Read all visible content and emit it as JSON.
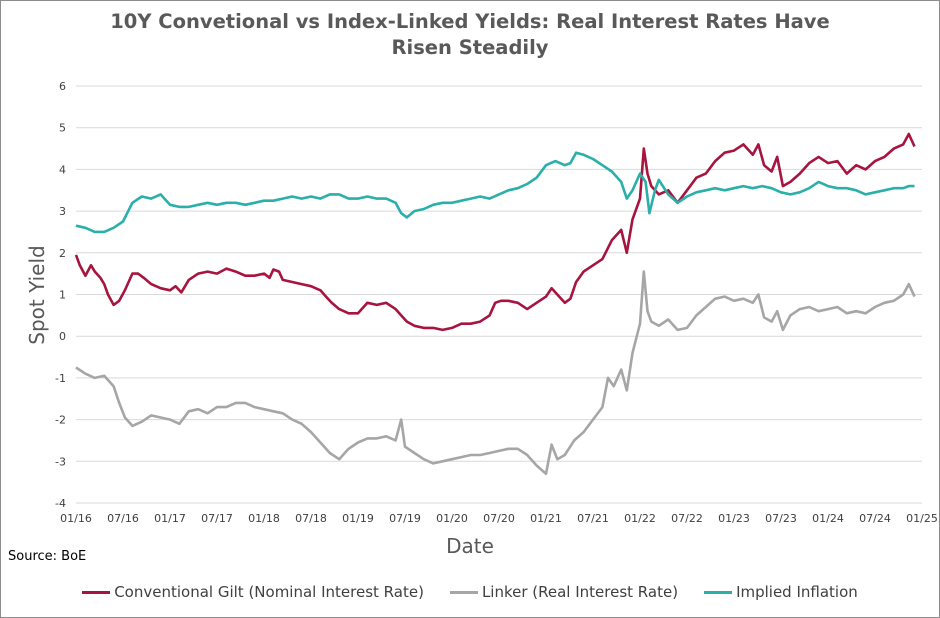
{
  "chart_data": {
    "type": "line",
    "title": [
      "10Y Convetional vs Index-Linked Yields: Real Interest Rates Have",
      "Risen Steadily"
    ],
    "xlabel": "Date",
    "ylabel": "Spot Yield",
    "source": "Source: BoE",
    "ylim": [
      -4,
      6
    ],
    "yticks": [
      "6",
      "5",
      "4",
      "3",
      "2",
      "1",
      "0",
      "-1",
      "-2",
      "-3",
      "-4"
    ],
    "xticks": [
      "01/16",
      "07/16",
      "01/17",
      "07/17",
      "01/18",
      "07/18",
      "01/19",
      "07/19",
      "01/20",
      "07/20",
      "01/21",
      "07/21",
      "01/22",
      "07/22",
      "01/23",
      "07/23",
      "01/24",
      "07/24",
      "01/25"
    ],
    "grid": "horizontal",
    "legend_position": "bottom",
    "series": [
      {
        "name": "Conventional Gilt (Nominal Interest Rate)",
        "color": "#A6143F",
        "points": [
          [
            0.0,
            1.95
          ],
          [
            0.2,
            1.7
          ],
          [
            0.5,
            1.45
          ],
          [
            0.8,
            1.7
          ],
          [
            1.0,
            1.55
          ],
          [
            1.3,
            1.4
          ],
          [
            1.5,
            1.25
          ],
          [
            1.7,
            1.0
          ],
          [
            2.0,
            0.75
          ],
          [
            2.3,
            0.85
          ],
          [
            2.6,
            1.1
          ],
          [
            2.8,
            1.3
          ],
          [
            3.0,
            1.5
          ],
          [
            3.3,
            1.5
          ],
          [
            3.6,
            1.4
          ],
          [
            4.0,
            1.25
          ],
          [
            4.5,
            1.15
          ],
          [
            5.0,
            1.1
          ],
          [
            5.3,
            1.2
          ],
          [
            5.6,
            1.05
          ],
          [
            6.0,
            1.35
          ],
          [
            6.5,
            1.5
          ],
          [
            7.0,
            1.55
          ],
          [
            7.5,
            1.5
          ],
          [
            8.0,
            1.62
          ],
          [
            8.5,
            1.55
          ],
          [
            9.0,
            1.45
          ],
          [
            9.5,
            1.45
          ],
          [
            10.0,
            1.5
          ],
          [
            10.3,
            1.4
          ],
          [
            10.5,
            1.6
          ],
          [
            10.8,
            1.55
          ],
          [
            11.0,
            1.35
          ],
          [
            11.5,
            1.3
          ],
          [
            12.0,
            1.25
          ],
          [
            12.5,
            1.2
          ],
          [
            13.0,
            1.1
          ],
          [
            13.3,
            0.95
          ],
          [
            13.6,
            0.8
          ],
          [
            14.0,
            0.65
          ],
          [
            14.5,
            0.55
          ],
          [
            15.0,
            0.55
          ],
          [
            15.5,
            0.8
          ],
          [
            16.0,
            0.75
          ],
          [
            16.5,
            0.8
          ],
          [
            17.0,
            0.65
          ],
          [
            17.3,
            0.5
          ],
          [
            17.6,
            0.35
          ],
          [
            18.0,
            0.25
          ],
          [
            18.5,
            0.2
          ],
          [
            19.0,
            0.2
          ],
          [
            19.5,
            0.15
          ],
          [
            20.0,
            0.2
          ],
          [
            20.5,
            0.3
          ],
          [
            21.0,
            0.3
          ],
          [
            21.5,
            0.35
          ],
          [
            22.0,
            0.5
          ],
          [
            22.3,
            0.8
          ],
          [
            22.6,
            0.85
          ],
          [
            23.0,
            0.85
          ],
          [
            23.5,
            0.8
          ],
          [
            24.0,
            0.65
          ],
          [
            24.5,
            0.8
          ],
          [
            25.0,
            0.95
          ],
          [
            25.3,
            1.15
          ],
          [
            25.6,
            1.0
          ],
          [
            26.0,
            0.8
          ],
          [
            26.3,
            0.9
          ],
          [
            26.6,
            1.3
          ],
          [
            27.0,
            1.55
          ],
          [
            27.5,
            1.7
          ],
          [
            28.0,
            1.85
          ],
          [
            28.5,
            2.3
          ],
          [
            29.0,
            2.55
          ],
          [
            29.3,
            2.0
          ],
          [
            29.6,
            2.8
          ],
          [
            30.0,
            3.3
          ],
          [
            30.2,
            4.5
          ],
          [
            30.4,
            3.9
          ],
          [
            30.6,
            3.6
          ],
          [
            31.0,
            3.4
          ],
          [
            31.5,
            3.5
          ],
          [
            32.0,
            3.2
          ],
          [
            32.5,
            3.5
          ],
          [
            33.0,
            3.8
          ],
          [
            33.5,
            3.9
          ],
          [
            34.0,
            4.2
          ],
          [
            34.5,
            4.4
          ],
          [
            35.0,
            4.45
          ],
          [
            35.5,
            4.6
          ],
          [
            36.0,
            4.35
          ],
          [
            36.3,
            4.6
          ],
          [
            36.6,
            4.1
          ],
          [
            37.0,
            3.95
          ],
          [
            37.3,
            4.3
          ],
          [
            37.6,
            3.6
          ],
          [
            38.0,
            3.7
          ],
          [
            38.5,
            3.9
          ],
          [
            39.0,
            4.15
          ],
          [
            39.5,
            4.3
          ],
          [
            40.0,
            4.15
          ],
          [
            40.5,
            4.2
          ],
          [
            41.0,
            3.9
          ],
          [
            41.5,
            4.1
          ],
          [
            42.0,
            4.0
          ],
          [
            42.5,
            4.2
          ],
          [
            43.0,
            4.3
          ],
          [
            43.5,
            4.5
          ],
          [
            44.0,
            4.6
          ],
          [
            44.3,
            4.85
          ],
          [
            44.6,
            4.55
          ]
        ]
      },
      {
        "name": "Linker (Real Interest Rate)",
        "color": "#A6A6A6",
        "points": [
          [
            0.0,
            -0.75
          ],
          [
            0.5,
            -0.9
          ],
          [
            1.0,
            -1.0
          ],
          [
            1.5,
            -0.95
          ],
          [
            2.0,
            -1.2
          ],
          [
            2.3,
            -1.6
          ],
          [
            2.6,
            -1.95
          ],
          [
            3.0,
            -2.15
          ],
          [
            3.5,
            -2.05
          ],
          [
            4.0,
            -1.9
          ],
          [
            4.5,
            -1.95
          ],
          [
            5.0,
            -2.0
          ],
          [
            5.5,
            -2.1
          ],
          [
            6.0,
            -1.8
          ],
          [
            6.5,
            -1.75
          ],
          [
            7.0,
            -1.85
          ],
          [
            7.5,
            -1.7
          ],
          [
            8.0,
            -1.7
          ],
          [
            8.5,
            -1.6
          ],
          [
            9.0,
            -1.6
          ],
          [
            9.5,
            -1.7
          ],
          [
            10.0,
            -1.75
          ],
          [
            10.5,
            -1.8
          ],
          [
            11.0,
            -1.85
          ],
          [
            11.5,
            -2.0
          ],
          [
            12.0,
            -2.1
          ],
          [
            12.5,
            -2.3
          ],
          [
            13.0,
            -2.55
          ],
          [
            13.5,
            -2.8
          ],
          [
            14.0,
            -2.95
          ],
          [
            14.5,
            -2.7
          ],
          [
            15.0,
            -2.55
          ],
          [
            15.5,
            -2.45
          ],
          [
            16.0,
            -2.45
          ],
          [
            16.5,
            -2.4
          ],
          [
            17.0,
            -2.5
          ],
          [
            17.3,
            -2.0
          ],
          [
            17.5,
            -2.65
          ],
          [
            18.0,
            -2.8
          ],
          [
            18.5,
            -2.95
          ],
          [
            19.0,
            -3.05
          ],
          [
            19.5,
            -3.0
          ],
          [
            20.0,
            -2.95
          ],
          [
            20.5,
            -2.9
          ],
          [
            21.0,
            -2.85
          ],
          [
            21.5,
            -2.85
          ],
          [
            22.0,
            -2.8
          ],
          [
            22.5,
            -2.75
          ],
          [
            23.0,
            -2.7
          ],
          [
            23.5,
            -2.7
          ],
          [
            24.0,
            -2.85
          ],
          [
            24.5,
            -3.1
          ],
          [
            25.0,
            -3.3
          ],
          [
            25.3,
            -2.6
          ],
          [
            25.6,
            -2.95
          ],
          [
            26.0,
            -2.85
          ],
          [
            26.5,
            -2.5
          ],
          [
            27.0,
            -2.3
          ],
          [
            27.5,
            -2.0
          ],
          [
            28.0,
            -1.7
          ],
          [
            28.3,
            -1.0
          ],
          [
            28.6,
            -1.2
          ],
          [
            29.0,
            -0.8
          ],
          [
            29.3,
            -1.3
          ],
          [
            29.6,
            -0.4
          ],
          [
            30.0,
            0.3
          ],
          [
            30.2,
            1.55
          ],
          [
            30.4,
            0.6
          ],
          [
            30.6,
            0.35
          ],
          [
            31.0,
            0.25
          ],
          [
            31.5,
            0.4
          ],
          [
            32.0,
            0.15
          ],
          [
            32.5,
            0.2
          ],
          [
            33.0,
            0.5
          ],
          [
            33.5,
            0.7
          ],
          [
            34.0,
            0.9
          ],
          [
            34.5,
            0.95
          ],
          [
            35.0,
            0.85
          ],
          [
            35.5,
            0.9
          ],
          [
            36.0,
            0.8
          ],
          [
            36.3,
            1.0
          ],
          [
            36.6,
            0.45
          ],
          [
            37.0,
            0.35
          ],
          [
            37.3,
            0.6
          ],
          [
            37.6,
            0.15
          ],
          [
            38.0,
            0.5
          ],
          [
            38.5,
            0.65
          ],
          [
            39.0,
            0.7
          ],
          [
            39.5,
            0.6
          ],
          [
            40.0,
            0.65
          ],
          [
            40.5,
            0.7
          ],
          [
            41.0,
            0.55
          ],
          [
            41.5,
            0.6
          ],
          [
            42.0,
            0.55
          ],
          [
            42.5,
            0.7
          ],
          [
            43.0,
            0.8
          ],
          [
            43.5,
            0.85
          ],
          [
            44.0,
            1.0
          ],
          [
            44.3,
            1.25
          ],
          [
            44.6,
            0.95
          ]
        ]
      },
      {
        "name": "Implied Inflation",
        "color": "#2AAFAA",
        "points": [
          [
            0.0,
            2.65
          ],
          [
            0.5,
            2.6
          ],
          [
            1.0,
            2.5
          ],
          [
            1.5,
            2.5
          ],
          [
            2.0,
            2.6
          ],
          [
            2.5,
            2.75
          ],
          [
            3.0,
            3.2
          ],
          [
            3.5,
            3.35
          ],
          [
            4.0,
            3.3
          ],
          [
            4.5,
            3.4
          ],
          [
            5.0,
            3.15
          ],
          [
            5.5,
            3.1
          ],
          [
            6.0,
            3.1
          ],
          [
            6.5,
            3.15
          ],
          [
            7.0,
            3.2
          ],
          [
            7.5,
            3.15
          ],
          [
            8.0,
            3.2
          ],
          [
            8.5,
            3.2
          ],
          [
            9.0,
            3.15
          ],
          [
            9.5,
            3.2
          ],
          [
            10.0,
            3.25
          ],
          [
            10.5,
            3.25
          ],
          [
            11.0,
            3.3
          ],
          [
            11.5,
            3.35
          ],
          [
            12.0,
            3.3
          ],
          [
            12.5,
            3.35
          ],
          [
            13.0,
            3.3
          ],
          [
            13.5,
            3.4
          ],
          [
            14.0,
            3.4
          ],
          [
            14.5,
            3.3
          ],
          [
            15.0,
            3.3
          ],
          [
            15.5,
            3.35
          ],
          [
            16.0,
            3.3
          ],
          [
            16.5,
            3.3
          ],
          [
            17.0,
            3.2
          ],
          [
            17.3,
            2.95
          ],
          [
            17.6,
            2.85
          ],
          [
            18.0,
            3.0
          ],
          [
            18.5,
            3.05
          ],
          [
            19.0,
            3.15
          ],
          [
            19.5,
            3.2
          ],
          [
            20.0,
            3.2
          ],
          [
            20.5,
            3.25
          ],
          [
            21.0,
            3.3
          ],
          [
            21.5,
            3.35
          ],
          [
            22.0,
            3.3
          ],
          [
            22.5,
            3.4
          ],
          [
            23.0,
            3.5
          ],
          [
            23.5,
            3.55
          ],
          [
            24.0,
            3.65
          ],
          [
            24.5,
            3.8
          ],
          [
            25.0,
            4.1
          ],
          [
            25.5,
            4.2
          ],
          [
            26.0,
            4.1
          ],
          [
            26.3,
            4.15
          ],
          [
            26.6,
            4.4
          ],
          [
            27.0,
            4.35
          ],
          [
            27.5,
            4.25
          ],
          [
            28.0,
            4.1
          ],
          [
            28.5,
            3.95
          ],
          [
            29.0,
            3.7
          ],
          [
            29.3,
            3.3
          ],
          [
            29.6,
            3.5
          ],
          [
            30.0,
            3.9
          ],
          [
            30.3,
            3.7
          ],
          [
            30.5,
            2.95
          ],
          [
            30.8,
            3.5
          ],
          [
            31.0,
            3.75
          ],
          [
            31.5,
            3.4
          ],
          [
            32.0,
            3.2
          ],
          [
            32.5,
            3.35
          ],
          [
            33.0,
            3.45
          ],
          [
            33.5,
            3.5
          ],
          [
            34.0,
            3.55
          ],
          [
            34.5,
            3.5
          ],
          [
            35.0,
            3.55
          ],
          [
            35.5,
            3.6
          ],
          [
            36.0,
            3.55
          ],
          [
            36.5,
            3.6
          ],
          [
            37.0,
            3.55
          ],
          [
            37.5,
            3.45
          ],
          [
            38.0,
            3.4
          ],
          [
            38.5,
            3.45
          ],
          [
            39.0,
            3.55
          ],
          [
            39.5,
            3.7
          ],
          [
            40.0,
            3.6
          ],
          [
            40.5,
            3.55
          ],
          [
            41.0,
            3.55
          ],
          [
            41.5,
            3.5
          ],
          [
            42.0,
            3.4
          ],
          [
            42.5,
            3.45
          ],
          [
            43.0,
            3.5
          ],
          [
            43.5,
            3.55
          ],
          [
            44.0,
            3.55
          ],
          [
            44.3,
            3.6
          ],
          [
            44.6,
            3.6
          ]
        ]
      }
    ]
  }
}
